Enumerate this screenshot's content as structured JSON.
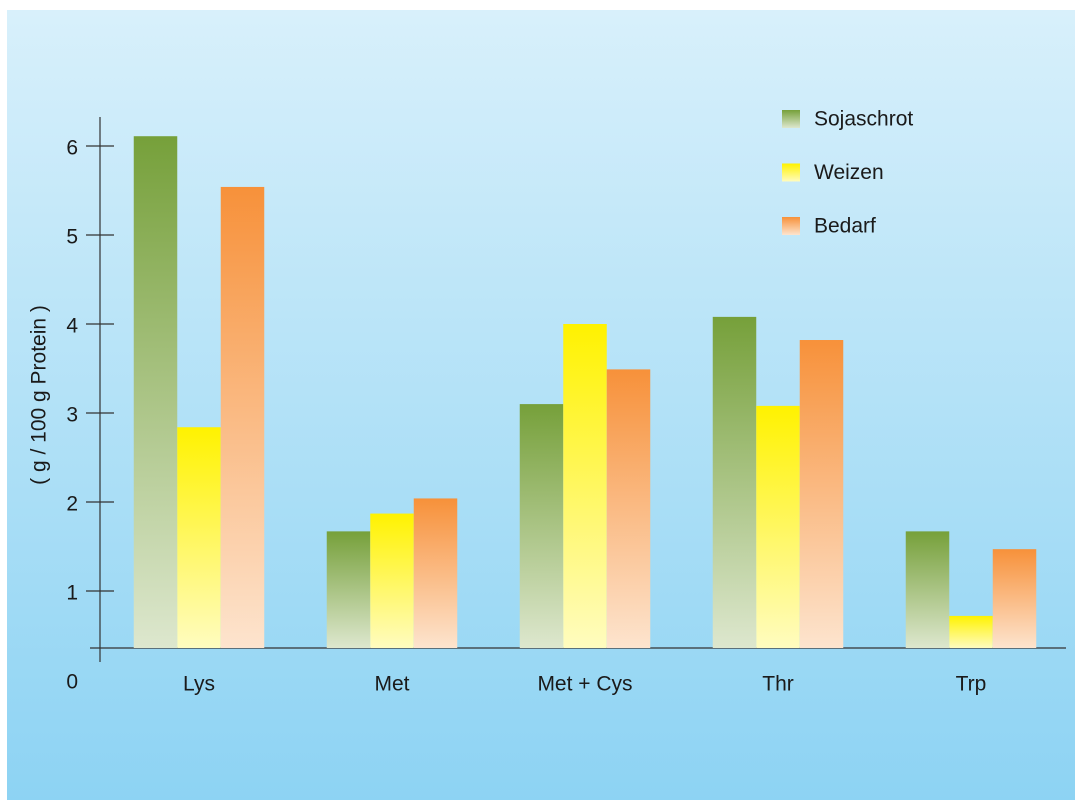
{
  "chart_data": {
    "type": "bar",
    "y_label": "( g / 100 g Protein )",
    "categories": [
      "Lys",
      "Met",
      "Met + Cys",
      "Thr",
      "Trp"
    ],
    "series": [
      {
        "name": "Sojaschrot",
        "color": "#76a03a",
        "values": [
          6.11,
          1.67,
          3.1,
          4.08,
          1.67
        ]
      },
      {
        "name": "Weizen",
        "color": "#fff200",
        "values": [
          2.84,
          1.87,
          4.0,
          3.08,
          0.72
        ]
      },
      {
        "name": "Bedarf",
        "color": "#f7913a",
        "values": [
          5.54,
          2.04,
          3.49,
          3.82,
          1.47
        ]
      }
    ],
    "ylim": [
      0,
      7
    ],
    "yticks": [
      0,
      1,
      2,
      3,
      4,
      5,
      6
    ],
    "legend": "upper right"
  }
}
